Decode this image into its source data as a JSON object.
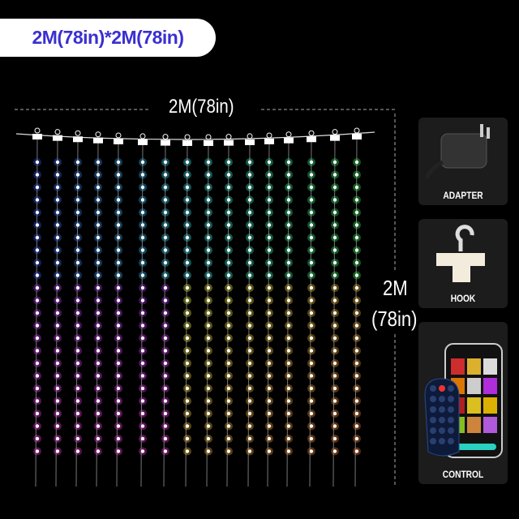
{
  "title": "2M(78in)*2M(78in)",
  "width_label": "2M(78in)",
  "height_label": {
    "line1": "2M",
    "line2": "(78in)"
  },
  "accessories": [
    {
      "label": "ADAPTER",
      "icon": "power-adapter-icon"
    },
    {
      "label": "HOOK",
      "icon": "hook-icon"
    },
    {
      "label": "CONTROL",
      "icon": "remote-and-phone-icon"
    }
  ],
  "colors": {
    "title_text": "#3b2fd1",
    "background": "#000000",
    "card": "#1c1c1c"
  }
}
